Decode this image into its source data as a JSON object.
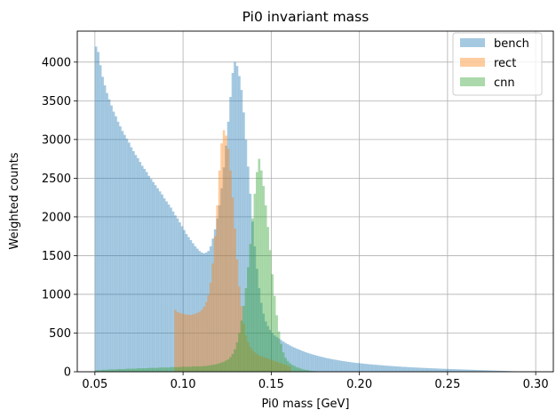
{
  "chart_data": {
    "type": "histogram",
    "title": "Pi0 invariant mass",
    "xlabel": "Pi0 mass [GeV]",
    "ylabel": "Weighted counts",
    "xlim": [
      0.04,
      0.31
    ],
    "ylim": [
      0,
      4400
    ],
    "xticks": [
      0.05,
      0.1,
      0.15,
      0.2,
      0.25,
      0.3
    ],
    "xtick_labels": [
      "0.05",
      "0.10",
      "0.15",
      "0.20",
      "0.25",
      "0.30"
    ],
    "yticks": [
      0,
      500,
      1000,
      1500,
      2000,
      2500,
      3000,
      3500,
      4000
    ],
    "ytick_labels": [
      "0",
      "500",
      "1000",
      "1500",
      "2000",
      "2500",
      "3000",
      "3500",
      "4000"
    ],
    "grid": true,
    "legend_position": "top-right",
    "bin_width": 0.00125,
    "series": [
      {
        "name": "bench",
        "color": "#1f77b4",
        "alpha": 0.4,
        "x_start": 0.05,
        "values": [
          4200,
          4130,
          3960,
          3810,
          3700,
          3600,
          3520,
          3440,
          3360,
          3300,
          3230,
          3170,
          3110,
          3060,
          3010,
          2960,
          2900,
          2850,
          2800,
          2760,
          2710,
          2660,
          2620,
          2580,
          2530,
          2490,
          2450,
          2410,
          2370,
          2330,
          2290,
          2240,
          2200,
          2160,
          2120,
          2070,
          2020,
          1980,
          1930,
          1880,
          1830,
          1780,
          1740,
          1700,
          1660,
          1620,
          1590,
          1560,
          1540,
          1530,
          1540,
          1560,
          1620,
          1720,
          1840,
          1980,
          2150,
          2370,
          2640,
          2920,
          3230,
          3550,
          3860,
          4000,
          3950,
          3820,
          3640,
          3350,
          3000,
          2650,
          2300,
          1940,
          1620,
          1330,
          1080,
          890,
          750,
          650,
          590,
          540,
          500,
          470,
          450,
          430,
          410,
          390,
          372,
          356,
          340,
          326,
          312,
          300,
          288,
          276,
          265,
          254,
          244,
          235,
          226,
          218,
          210,
          202,
          195,
          188,
          181,
          175,
          169,
          163,
          158,
          153,
          148,
          143,
          138,
          134,
          130,
          126,
          122,
          118,
          115,
          112,
          109,
          106,
          103,
          100,
          97,
          95,
          92,
          90,
          87,
          85,
          83,
          80,
          78,
          76,
          74,
          72,
          70,
          68,
          66,
          64,
          63,
          61,
          59,
          58,
          56,
          55,
          53,
          52,
          50,
          49,
          48,
          46,
          45,
          44,
          43,
          42,
          40,
          39,
          38,
          37,
          36,
          35,
          34,
          33,
          32,
          31,
          30,
          29,
          28,
          27,
          26,
          25,
          24,
          23,
          22,
          21,
          20,
          19,
          18,
          17,
          16,
          15,
          14,
          13,
          12,
          11,
          10,
          9,
          8,
          7,
          6,
          5,
          4,
          3,
          2,
          2,
          2,
          1,
          1,
          1,
          1
        ]
      },
      {
        "name": "rect",
        "color": "#ff7f0e",
        "alpha": 0.4,
        "x_start": 0.095,
        "values": [
          800,
          770,
          760,
          750,
          745,
          740,
          735,
          735,
          740,
          750,
          760,
          775,
          800,
          840,
          900,
          990,
          1150,
          1400,
          1750,
          2150,
          2600,
          2950,
          3120,
          3050,
          2880,
          2600,
          2250,
          1850,
          1450,
          1100,
          850,
          620,
          470,
          380,
          320,
          280,
          250,
          230,
          210,
          200,
          190,
          180,
          170,
          160,
          150,
          140,
          130,
          120,
          110,
          100,
          90,
          80,
          65
        ]
      },
      {
        "name": "cnn",
        "color": "#2ca02c",
        "alpha": 0.4,
        "x_start": 0.05,
        "values": [
          20,
          20,
          20,
          25,
          25,
          25,
          30,
          30,
          30,
          30,
          35,
          35,
          35,
          35,
          40,
          40,
          40,
          40,
          40,
          45,
          45,
          45,
          45,
          45,
          50,
          50,
          50,
          50,
          50,
          55,
          55,
          55,
          55,
          55,
          60,
          60,
          60,
          60,
          60,
          65,
          65,
          65,
          65,
          65,
          70,
          70,
          70,
          70,
          70,
          75,
          75,
          80,
          85,
          90,
          95,
          100,
          110,
          120,
          130,
          145,
          160,
          190,
          230,
          290,
          380,
          500,
          660,
          850,
          1080,
          1350,
          1650,
          1980,
          2300,
          2580,
          2750,
          2600,
          2400,
          2150,
          1870,
          1570,
          1260,
          980,
          730,
          520,
          360,
          250,
          180,
          140,
          110,
          90,
          75,
          60,
          50,
          40,
          30,
          25,
          20,
          15,
          10,
          8,
          6,
          4,
          3,
          2,
          2,
          1,
          1,
          1,
          1,
          1
        ]
      }
    ]
  }
}
